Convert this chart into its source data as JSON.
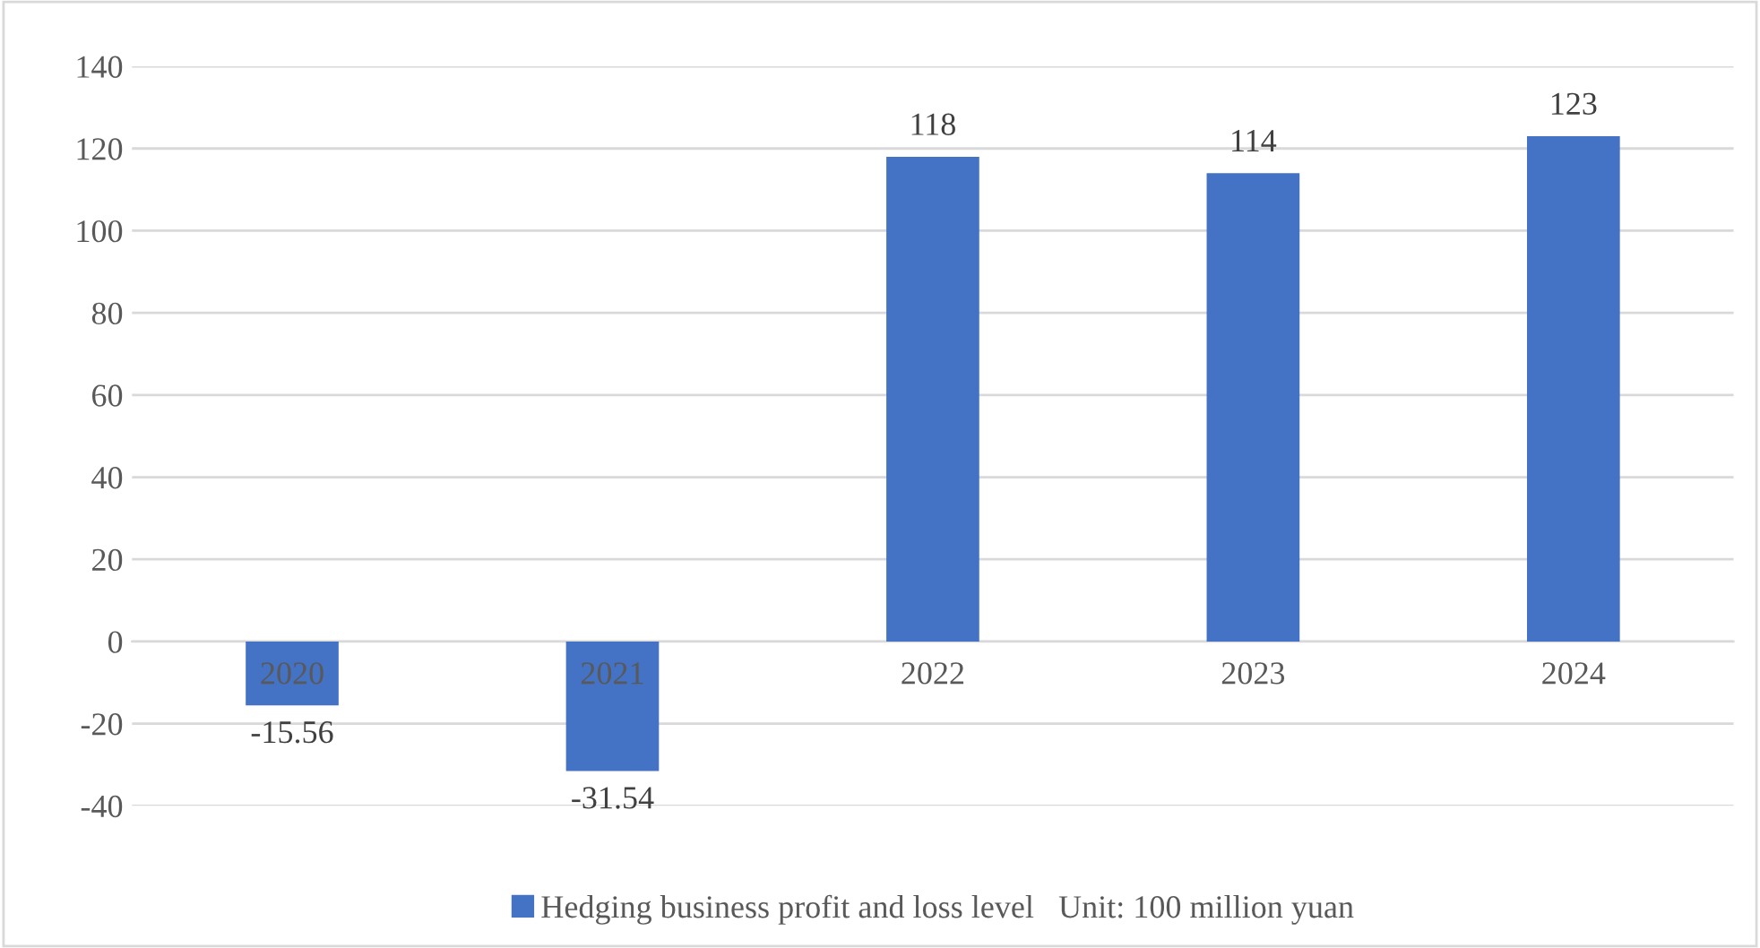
{
  "chart_data": {
    "type": "bar",
    "categories": [
      "2020",
      "2021",
      "2022",
      "2023",
      "2024"
    ],
    "series": [
      {
        "name": "Hedging business profit and loss level   Unit: 100 million yuan",
        "color": "#4472c4",
        "values": [
          -15.56,
          -31.54,
          118,
          114,
          123
        ]
      }
    ],
    "ylim": [
      -40,
      140
    ],
    "yticks": [
      -40,
      -20,
      0,
      20,
      40,
      60,
      80,
      100,
      120,
      140
    ],
    "grid": "y",
    "legend": "bottom",
    "data_labels": true
  }
}
